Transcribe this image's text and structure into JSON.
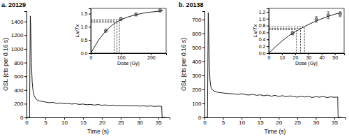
{
  "chart_data": [
    {
      "type": "line",
      "title": "a. 20129",
      "x_label": "Time (s)",
      "y_label": "OSL (cts per 0.16 s)",
      "xlim": [
        0,
        38
      ],
      "xticks": [
        0,
        5,
        10,
        15,
        20,
        25,
        30,
        35
      ],
      "ylim": [
        0,
        1550
      ],
      "yticks": [
        0,
        200,
        400,
        600,
        800,
        1000,
        1200,
        1400
      ],
      "series": [
        {
          "color": "#000000",
          "x": [
            0,
            0.8,
            1.0,
            1.1,
            1.2,
            1.3,
            1.5,
            1.7,
            2.0,
            2.5,
            3,
            3.5,
            4,
            5,
            6,
            7,
            8,
            9,
            10,
            11,
            12,
            13,
            14,
            15,
            16,
            17,
            18,
            19,
            20,
            21,
            22,
            23,
            24,
            25,
            26,
            27,
            28,
            29,
            30,
            31,
            32,
            33,
            34,
            35,
            35.9,
            36.0,
            37
          ],
          "values": [
            0,
            0,
            1480,
            1350,
            1050,
            800,
            520,
            400,
            320,
            270,
            250,
            240,
            235,
            225,
            215,
            220,
            205,
            210,
            200,
            205,
            195,
            200,
            190,
            195,
            185,
            190,
            180,
            188,
            178,
            182,
            175,
            180,
            172,
            176,
            170,
            174,
            168,
            172,
            165,
            170,
            163,
            168,
            160,
            165,
            162,
            0,
            0
          ]
        }
      ]
    },
    {
      "type": "scatter",
      "x_label": "Dose (Gy)",
      "y_label": "Lx/Tx",
      "xlim": [
        0,
        250
      ],
      "xticks": [
        0,
        100,
        200
      ],
      "ylim": [
        0,
        1.7
      ],
      "yticks": [
        {
          "value": 0,
          "label": "0.0"
        },
        0.5,
        {
          "value": 1,
          "label": "1.0"
        },
        1.5
      ],
      "series": [
        {
          "type": "scatter",
          "marker": "circle",
          "color": "#999999",
          "x": [
            50,
            100,
            150,
            230
          ],
          "values": [
            0.85,
            1.3,
            1.47,
            1.62
          ],
          "errors": [
            0.05,
            0.06,
            0.06,
            0.05
          ]
        },
        {
          "type": "line",
          "color": "#000000",
          "x": [
            0,
            25,
            50,
            75,
            100,
            125,
            150,
            175,
            200,
            225,
            240
          ],
          "values": [
            0,
            0.48,
            0.85,
            1.1,
            1.27,
            1.38,
            1.46,
            1.52,
            1.56,
            1.59,
            1.61
          ]
        },
        {
          "type": "line",
          "line_style": "dashed",
          "color": "#000000",
          "x": [
            0,
            78,
            78
          ],
          "values": [
            1.17,
            1.17,
            0
          ]
        },
        {
          "type": "line",
          "line_style": "dashed",
          "color": "#000000",
          "x": [
            0,
            87,
            87
          ],
          "values": [
            1.22,
            1.22,
            0
          ]
        },
        {
          "type": "line",
          "line_style": "dashed",
          "color": "#000000",
          "x": [
            0,
            95,
            95
          ],
          "values": [
            1.27,
            1.27,
            0
          ]
        }
      ]
    },
    {
      "type": "line",
      "title": "b. 20138",
      "x_label": "Time (s)",
      "y_label": "OSL (cts per 0.16 s)",
      "xlim": [
        0,
        38
      ],
      "xticks": [
        0,
        5,
        10,
        15,
        20,
        25,
        30,
        35
      ],
      "ylim": [
        0,
        760
      ],
      "yticks": [
        0,
        100,
        200,
        300,
        400,
        500,
        600,
        700
      ],
      "series": [
        {
          "color": "#000000",
          "x": [
            0,
            0.8,
            1.0,
            1.1,
            1.2,
            1.3,
            1.5,
            1.7,
            2.0,
            2.5,
            3,
            3.5,
            4,
            5,
            6,
            7,
            8,
            9,
            10,
            11,
            12,
            13,
            14,
            15,
            16,
            17,
            18,
            19,
            20,
            21,
            22,
            23,
            24,
            25,
            26,
            27,
            28,
            29,
            30,
            31,
            32,
            33,
            34,
            35,
            35.9,
            36.0,
            37
          ],
          "values": [
            0,
            0,
            750,
            650,
            480,
            360,
            260,
            220,
            200,
            190,
            185,
            180,
            178,
            175,
            172,
            170,
            168,
            165,
            170,
            163,
            160,
            166,
            158,
            162,
            155,
            160,
            152,
            158,
            150,
            156,
            148,
            154,
            150,
            145,
            152,
            146,
            150,
            143,
            148,
            145,
            150,
            142,
            147,
            144,
            146,
            0,
            0
          ]
        }
      ]
    },
    {
      "type": "scatter",
      "x_label": "Dose (Gy)",
      "y_label": "Lx/Tx",
      "xlim": [
        0,
        57
      ],
      "xticks": [
        0,
        10,
        20,
        30,
        40,
        50
      ],
      "ylim": [
        0,
        1.3
      ],
      "yticks": [
        {
          "value": 0,
          "label": "0.0"
        },
        0.2,
        0.4,
        0.6,
        0.8,
        {
          "value": 1,
          "label": "1.0"
        },
        1.2
      ],
      "series": [
        {
          "type": "scatter",
          "marker": "circle",
          "color": "#999999",
          "x": [
            18,
            36,
            45,
            54
          ],
          "values": [
            0.58,
            0.98,
            1.1,
            1.13
          ],
          "errors": [
            0.05,
            0.08,
            0.1,
            0.07
          ]
        },
        {
          "type": "line",
          "color": "#000000",
          "x": [
            0,
            5,
            10,
            15,
            20,
            25,
            30,
            35,
            40,
            45,
            50,
            55
          ],
          "values": [
            0,
            0.18,
            0.35,
            0.5,
            0.62,
            0.73,
            0.83,
            0.92,
            1.0,
            1.07,
            1.13,
            1.18
          ]
        },
        {
          "type": "line",
          "line_style": "dashed",
          "color": "#000000",
          "x": [
            0,
            21,
            21
          ],
          "values": [
            0.68,
            0.68,
            0
          ]
        },
        {
          "type": "line",
          "line_style": "dashed",
          "color": "#000000",
          "x": [
            0,
            24,
            24
          ],
          "values": [
            0.72,
            0.72,
            0
          ]
        },
        {
          "type": "line",
          "line_style": "dashed",
          "color": "#000000",
          "x": [
            0,
            27,
            27
          ],
          "values": [
            0.76,
            0.76,
            0
          ]
        }
      ]
    }
  ]
}
